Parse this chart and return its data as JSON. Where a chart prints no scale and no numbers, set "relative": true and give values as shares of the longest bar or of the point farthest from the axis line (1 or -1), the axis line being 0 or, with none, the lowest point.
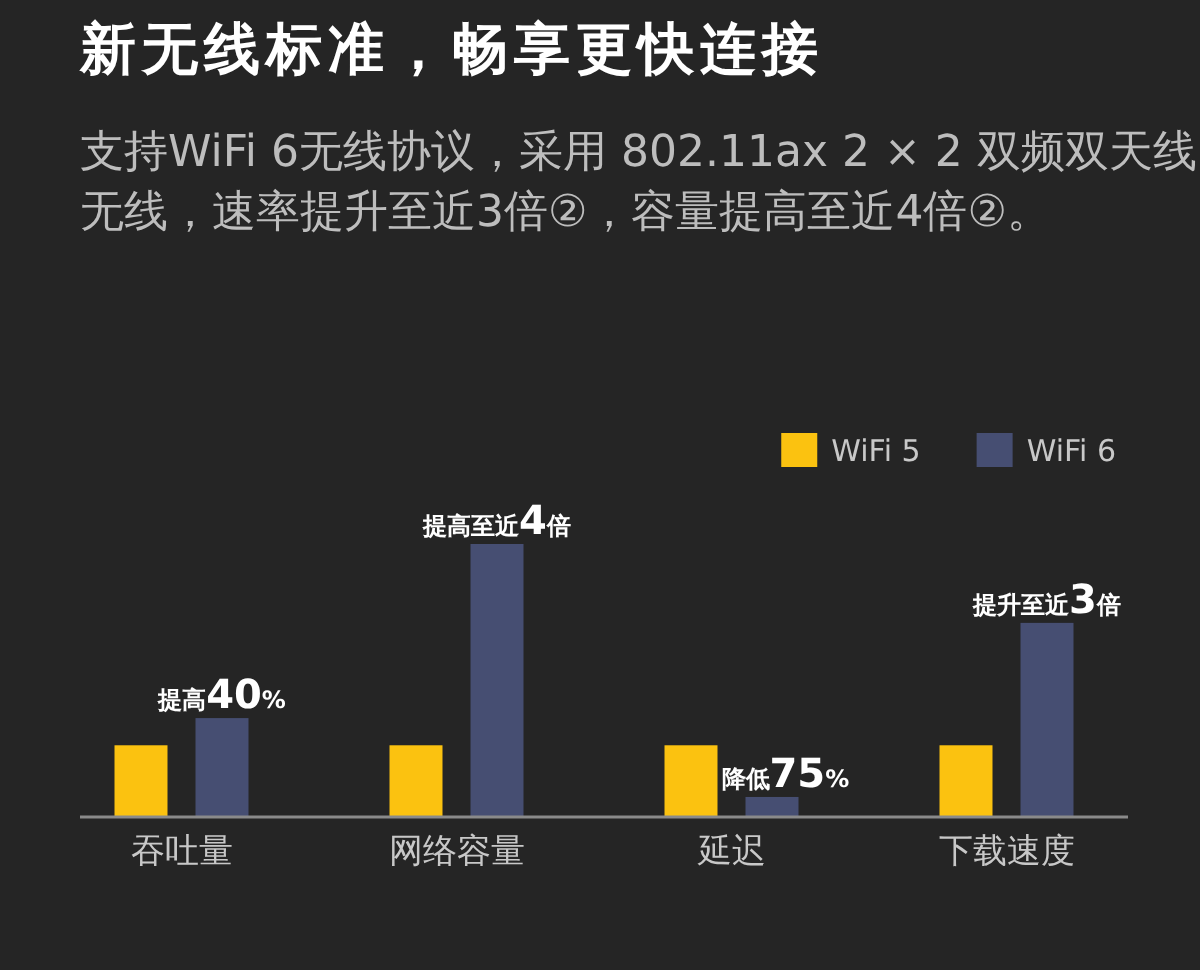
{
  "chart_data": {
    "type": "bar",
    "title": "新无线标准，畅享更快连接",
    "subtitle": "支持WiFi 6无线协议，采用 802.11ax 2 × 2 双频双天线无线，速率提升至近3倍②，容量提高至近4倍②。",
    "categories": [
      "吞吐量",
      "网络容量",
      "延迟",
      "下载速度"
    ],
    "series": [
      {
        "name": "WiFi 5",
        "color": "#fbc210",
        "values": [
          0.26,
          0.26,
          0.26,
          0.26
        ]
      },
      {
        "name": "WiFi 6",
        "color": "#464e72",
        "values": [
          0.36,
          1,
          0.07,
          0.71
        ]
      }
    ],
    "relative": true,
    "legend": "top right",
    "annotations": [
      "提高40%",
      "提高至近4倍",
      "降低75%",
      "提升至近3倍"
    ]
  }
}
